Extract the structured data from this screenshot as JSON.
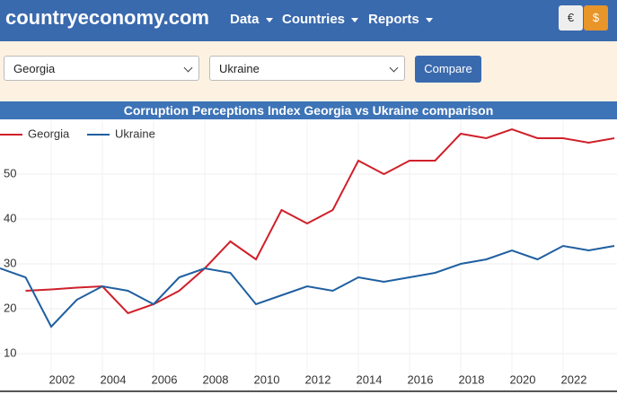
{
  "header": {
    "logo": "countryeconomy.com",
    "nav": [
      "Data",
      "Countries",
      "Reports"
    ],
    "currency": [
      "€",
      "$"
    ]
  },
  "form": {
    "selects": [
      "Georgia",
      "Ukraine"
    ],
    "button": "Compare"
  },
  "chart_data": {
    "type": "line",
    "title": "Corruption Perceptions Index Georgia vs Ukraine comparison",
    "x": [
      2000,
      2001,
      2002,
      2003,
      2004,
      2005,
      2006,
      2007,
      2008,
      2009,
      2010,
      2011,
      2012,
      2013,
      2014,
      2015,
      2016,
      2017,
      2018,
      2019,
      2020,
      2021,
      2022,
      2023,
      2024
    ],
    "series": [
      {
        "name": "Georgia",
        "color": "#d0202a",
        "values": [
          null,
          24,
          24.3,
          24.7,
          25,
          19,
          21,
          24,
          29,
          35,
          31,
          42,
          39,
          42,
          53,
          50,
          53,
          53,
          59,
          58,
          60,
          58,
          58,
          57,
          58
        ]
      },
      {
        "name": "Ukraine",
        "color": "#1f5fa0",
        "values": [
          29,
          27,
          16,
          22,
          25,
          24,
          21,
          27,
          29,
          28,
          21,
          23,
          25,
          24,
          27,
          26,
          27,
          28,
          30,
          31,
          33,
          31,
          34,
          33,
          34
        ]
      }
    ],
    "xlim": [
      2000,
      2024
    ],
    "xticks": [
      2002,
      2004,
      2006,
      2008,
      2010,
      2012,
      2014,
      2016,
      2018,
      2020,
      2022
    ],
    "ylim": [
      2,
      62
    ],
    "yticks": [
      10,
      20,
      30,
      40,
      50
    ],
    "grid": true,
    "legend": "top-left"
  }
}
